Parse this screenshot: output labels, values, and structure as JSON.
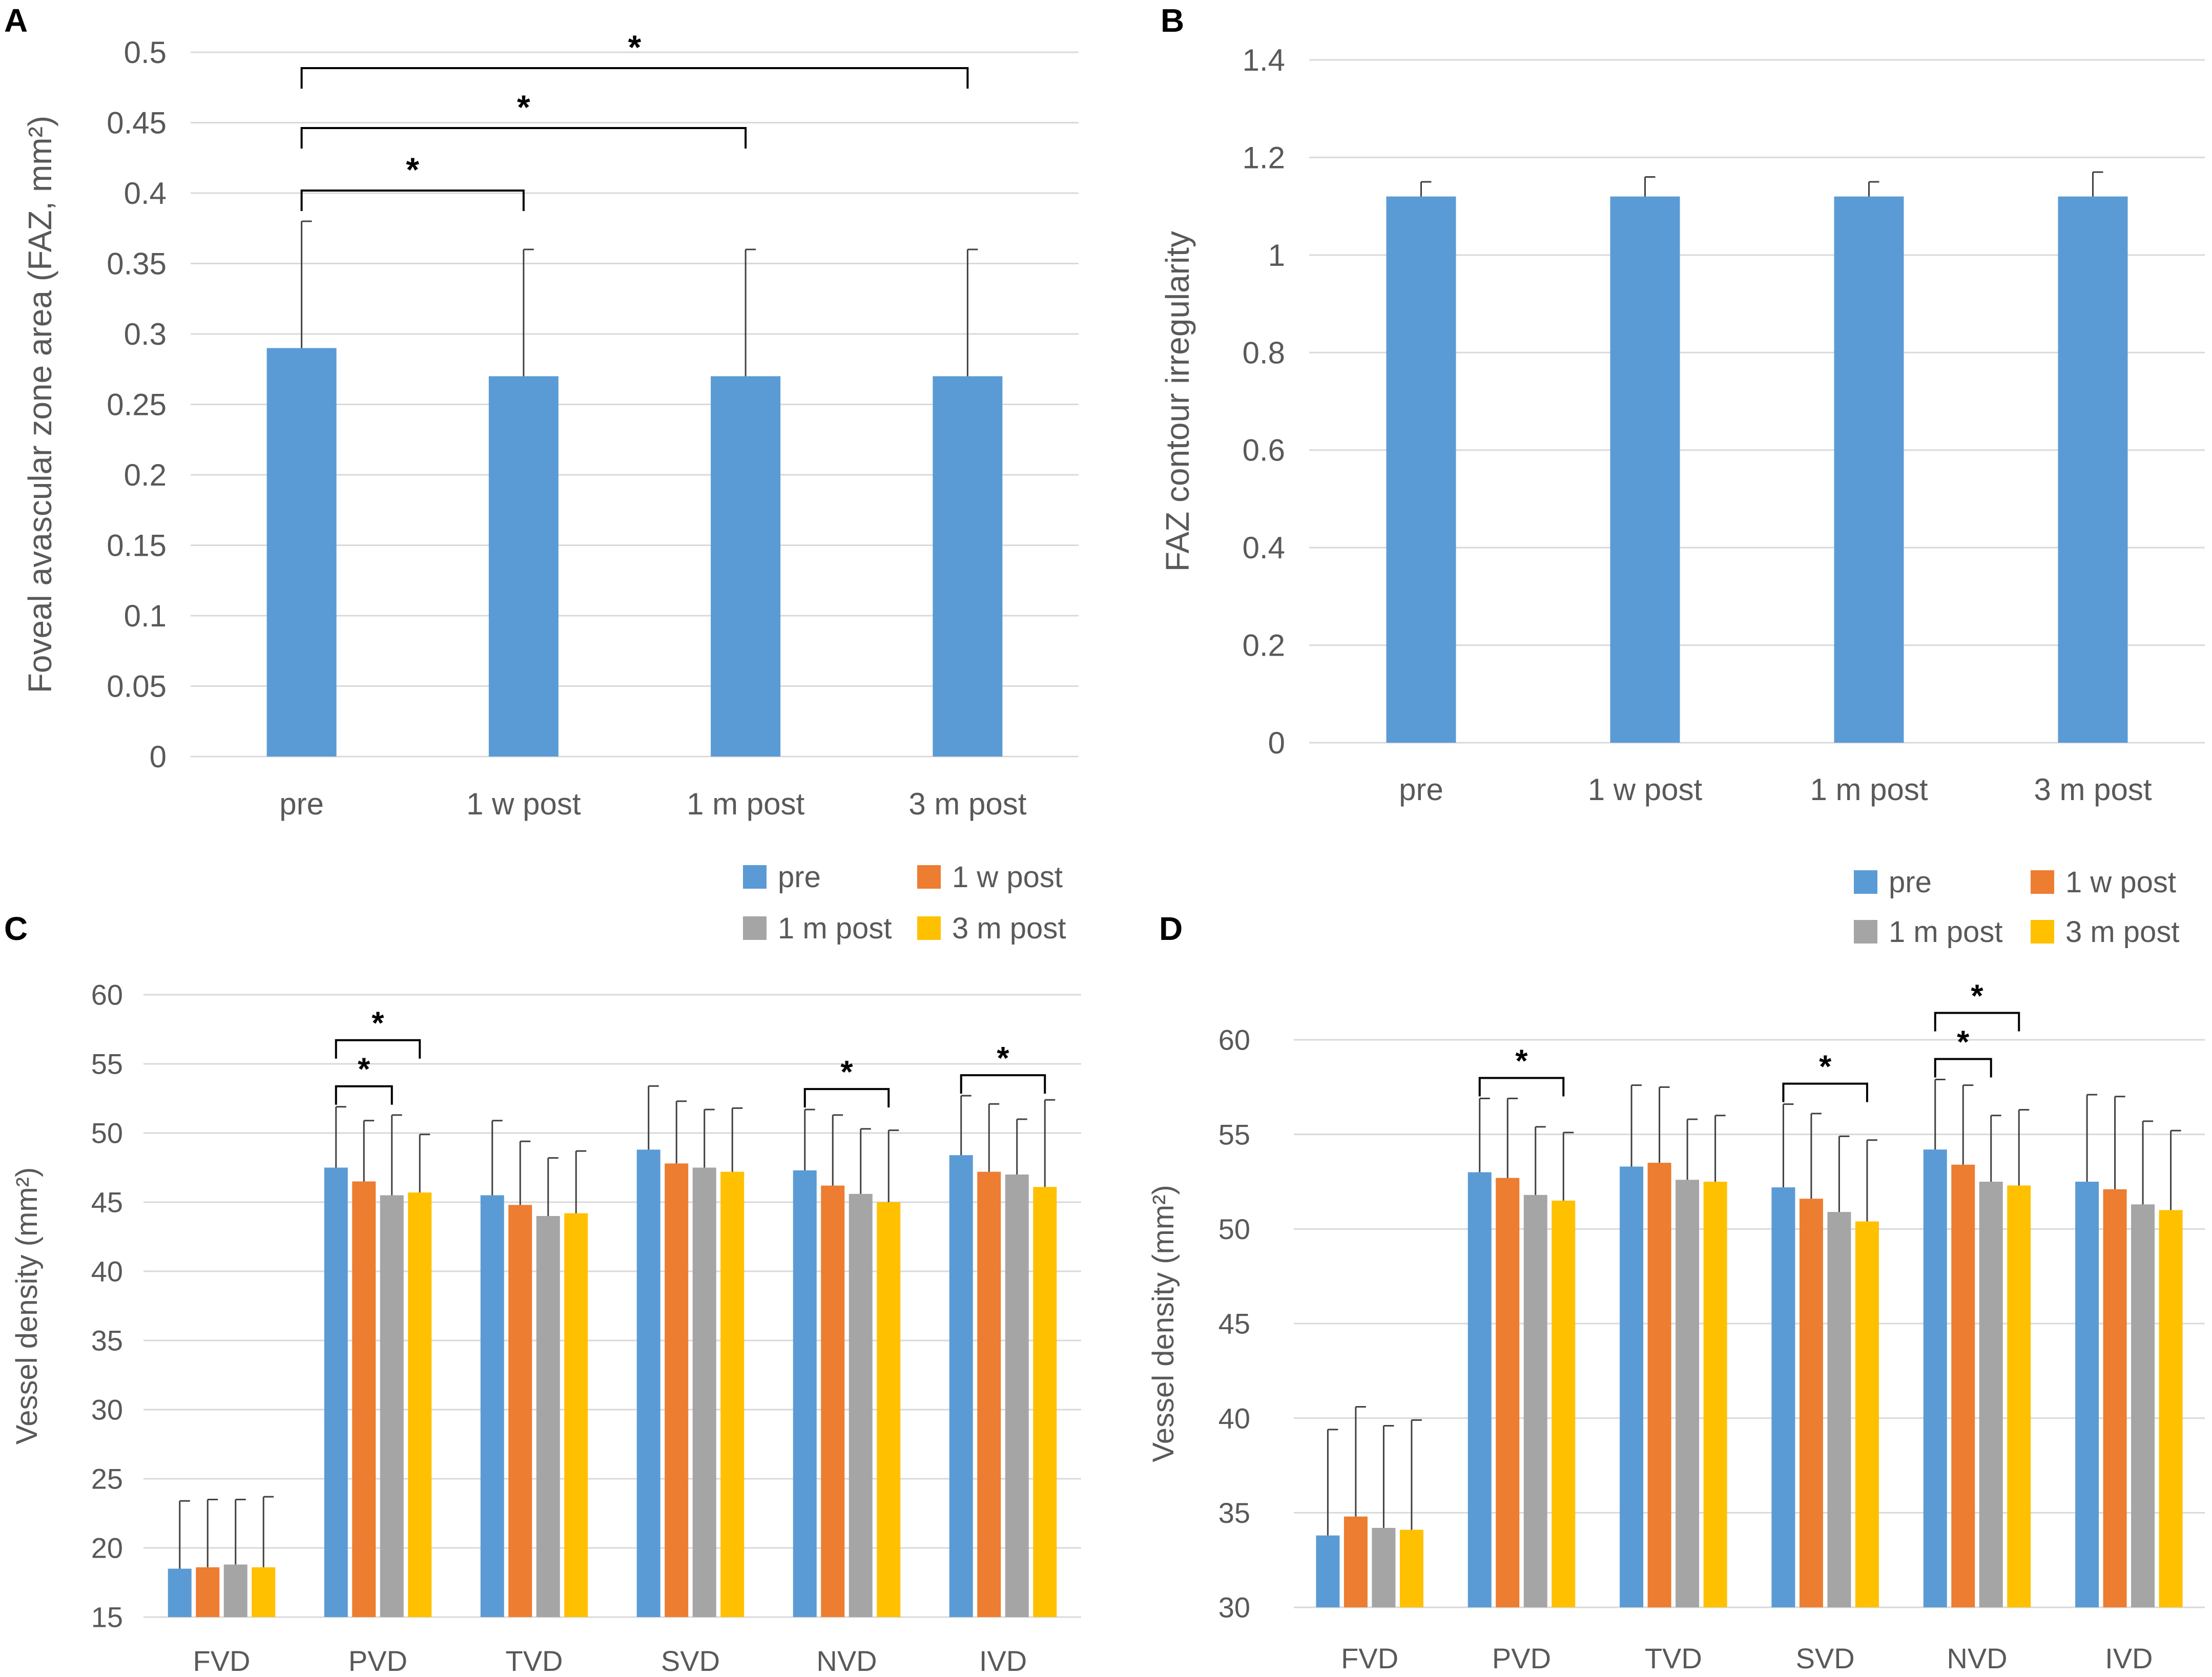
{
  "colors": {
    "pre": "#5b9bd5",
    "w1": "#ed7d31",
    "m1": "#a5a5a5",
    "m3": "#ffc000",
    "grid": "#d9d9d9",
    "axis_text": "#595959",
    "annotation": "#000000"
  },
  "chart_data": [
    {
      "panel": "A",
      "type": "bar",
      "title": "",
      "ylabel": "Foveal avascular zone area (FAZ, mm²)",
      "xlabel": "",
      "ylim": [
        0,
        0.5
      ],
      "yticks": [
        "0",
        "0.05",
        "0.1",
        "0.15",
        "0.2",
        "0.25",
        "0.3",
        "0.35",
        "0.4",
        "0.45",
        "0.5"
      ],
      "categories": [
        "pre",
        "1 w post",
        "1 m post",
        "3 m post"
      ],
      "series": [
        {
          "name": "",
          "values": [
            0.29,
            0.27,
            0.27,
            0.27
          ],
          "error": [
            0.09,
            0.09,
            0.09,
            0.09
          ]
        }
      ],
      "significance": [
        {
          "from": 0,
          "to": 1,
          "label": "*"
        },
        {
          "from": 0,
          "to": 2,
          "label": "*"
        },
        {
          "from": 0,
          "to": 3,
          "label": "*"
        }
      ]
    },
    {
      "panel": "B",
      "type": "bar",
      "title": "",
      "ylabel": "FAZ contour irregularity",
      "xlabel": "",
      "ylim": [
        0,
        1.4
      ],
      "yticks": [
        "0",
        "0.2",
        "0.4",
        "0.6",
        "0.8",
        "1",
        "1.2",
        "1.4"
      ],
      "categories": [
        "pre",
        "1 w post",
        "1 m post",
        "3 m post"
      ],
      "series": [
        {
          "name": "",
          "values": [
            1.12,
            1.12,
            1.12,
            1.12
          ],
          "error": [
            0.03,
            0.04,
            0.03,
            0.05
          ]
        }
      ],
      "significance": []
    },
    {
      "panel": "C",
      "type": "bar",
      "title": "",
      "ylabel": "Vessel density (mm²)",
      "xlabel": "",
      "ylim": [
        15,
        60
      ],
      "yticks": [
        "15",
        "20",
        "25",
        "30",
        "35",
        "40",
        "45",
        "50",
        "55",
        "60"
      ],
      "categories": [
        "FVD",
        "PVD",
        "TVD",
        "SVD",
        "NVD",
        "IVD"
      ],
      "legend": [
        "pre",
        "1 w post",
        "1 m post",
        "3 m post"
      ],
      "series": [
        {
          "name": "pre",
          "values": [
            18.5,
            47.5,
            45.5,
            48.8,
            47.3,
            48.4
          ],
          "error": [
            4.9,
            4.4,
            5.4,
            4.6,
            4.4,
            4.3
          ]
        },
        {
          "name": "1 w post",
          "values": [
            18.6,
            46.5,
            44.8,
            47.8,
            46.2,
            47.2
          ],
          "error": [
            4.9,
            4.4,
            4.6,
            4.5,
            5.1,
            4.9
          ]
        },
        {
          "name": "1 m post",
          "values": [
            18.8,
            45.5,
            44.0,
            47.5,
            45.6,
            47.0
          ],
          "error": [
            4.7,
            5.8,
            4.2,
            4.2,
            4.7,
            4.0
          ]
        },
        {
          "name": "3 m post",
          "values": [
            18.6,
            45.7,
            44.2,
            47.2,
            45.0,
            46.1
          ],
          "error": [
            5.1,
            4.2,
            4.5,
            4.6,
            5.2,
            6.3
          ]
        }
      ],
      "significance": [
        {
          "category": 1,
          "from": 0,
          "to": 2,
          "label": "*"
        },
        {
          "category": 1,
          "from": 0,
          "to": 3,
          "label": "*"
        },
        {
          "category": 4,
          "from": 0,
          "to": 3,
          "label": "*"
        },
        {
          "category": 5,
          "from": 0,
          "to": 3,
          "label": "*"
        }
      ]
    },
    {
      "panel": "D",
      "type": "bar",
      "title": "",
      "ylabel": "Vessel density (mm²)",
      "xlabel": "",
      "ylim": [
        30,
        60
      ],
      "yticks": [
        "30",
        "35",
        "40",
        "45",
        "50",
        "55",
        "60"
      ],
      "categories": [
        "FVD",
        "PVD",
        "TVD",
        "SVD",
        "NVD",
        "IVD"
      ],
      "legend": [
        "pre",
        "1 w post",
        "1 m post",
        "3 m post"
      ],
      "series": [
        {
          "name": "pre",
          "values": [
            33.8,
            53.0,
            53.3,
            52.2,
            54.2,
            52.5
          ],
          "error": [
            5.6,
            3.9,
            4.3,
            4.4,
            3.7,
            4.6
          ]
        },
        {
          "name": "1 w post",
          "values": [
            34.8,
            52.7,
            53.5,
            51.6,
            53.4,
            52.1
          ],
          "error": [
            5.8,
            4.2,
            4.0,
            4.5,
            4.2,
            4.9
          ]
        },
        {
          "name": "1 m post",
          "values": [
            34.2,
            51.8,
            52.6,
            50.9,
            52.5,
            51.3
          ],
          "error": [
            5.4,
            3.6,
            3.2,
            4.0,
            3.5,
            4.4
          ]
        },
        {
          "name": "3 m post",
          "values": [
            34.1,
            51.5,
            52.5,
            50.4,
            52.3,
            51.0
          ],
          "error": [
            5.8,
            3.6,
            3.5,
            4.3,
            4.0,
            4.2
          ]
        }
      ],
      "significance": [
        {
          "category": 1,
          "from": 0,
          "to": 3,
          "label": "*"
        },
        {
          "category": 3,
          "from": 0,
          "to": 3,
          "label": "*"
        },
        {
          "category": 4,
          "from": 0,
          "to": 2,
          "label": "*"
        },
        {
          "category": 4,
          "from": 0,
          "to": 3,
          "label": "*"
        }
      ]
    }
  ]
}
